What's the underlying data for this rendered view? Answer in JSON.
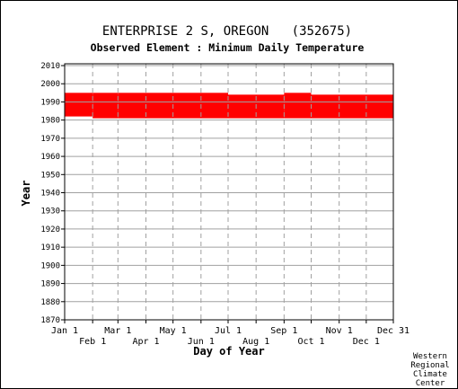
{
  "chart_data": {
    "type": "area",
    "title": "ENTERPRISE 2 S, OREGON   (352675)",
    "subtitle": "Observed Element : Minimum Daily Temperature",
    "xlabel": "Day of Year",
    "ylabel": "Year",
    "ylim": [
      1870,
      2011
    ],
    "xlim": [
      1,
      365
    ],
    "y_ticks": [
      1870,
      1880,
      1890,
      1900,
      1910,
      1920,
      1930,
      1940,
      1950,
      1960,
      1970,
      1980,
      1990,
      2000,
      2010
    ],
    "x_ticks_row1": [
      {
        "label": "Jan 1",
        "day": 1
      },
      {
        "label": "Mar 1",
        "day": 60
      },
      {
        "label": "May 1",
        "day": 121
      },
      {
        "label": "Jul 1",
        "day": 182
      },
      {
        "label": "Sep 1",
        "day": 244
      },
      {
        "label": "Nov 1",
        "day": 305
      },
      {
        "label": "Dec 31",
        "day": 365
      }
    ],
    "x_ticks_row2": [
      {
        "label": "Feb 1",
        "day": 32
      },
      {
        "label": "Apr 1",
        "day": 91
      },
      {
        "label": "Jun 1",
        "day": 152
      },
      {
        "label": "Aug 1",
        "day": 213
      },
      {
        "label": "Oct 1",
        "day": 274
      },
      {
        "label": "Dec 1",
        "day": 335
      }
    ],
    "grid": true,
    "series": [
      {
        "color": "#ff0000",
        "segments": [
          {
            "start_day": 1,
            "end_day": 31,
            "from_year": 1982,
            "to_year": 1995
          },
          {
            "start_day": 32,
            "end_day": 59,
            "from_year": 1981,
            "to_year": 1995
          },
          {
            "start_day": 60,
            "end_day": 181,
            "from_year": 1981,
            "to_year": 1995
          },
          {
            "start_day": 182,
            "end_day": 243,
            "from_year": 1981,
            "to_year": 1994
          },
          {
            "start_day": 244,
            "end_day": 273,
            "from_year": 1981,
            "to_year": 1995
          },
          {
            "start_day": 274,
            "end_day": 365,
            "from_year": 1981,
            "to_year": 1994
          }
        ]
      }
    ],
    "credit": [
      "Western",
      "Regional",
      "Climate",
      "Center"
    ]
  }
}
